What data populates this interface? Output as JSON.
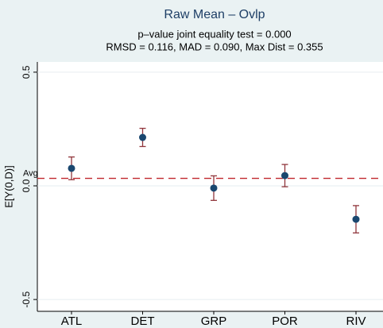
{
  "chart_data": {
    "type": "errorbar",
    "title": "Raw Mean – Ovlp",
    "subtitle": [
      "p–value joint equality test = 0.000",
      "RMSD = 0.116, MAD = 0.090, Max Dist = 0.355"
    ],
    "y_label": "E[Y(0,D)]",
    "categories": [
      "ATL",
      "DET",
      "GRP",
      "POR",
      "RIV"
    ],
    "values": [
      0.077,
      0.213,
      -0.01,
      0.045,
      -0.147
    ],
    "errors": [
      0.05,
      0.04,
      0.054,
      0.049,
      0.06
    ],
    "reference": {
      "label": "Avg",
      "value": 0.033,
      "color": "#c0262d"
    },
    "color": "#1a476f",
    "error_color": "#90353b",
    "ylim": [
      -0.552,
      0.545
    ],
    "yticks": [
      -0.5,
      {
        "value": 0,
        "label": "0.0"
      },
      0.5
    ],
    "grid": true
  }
}
